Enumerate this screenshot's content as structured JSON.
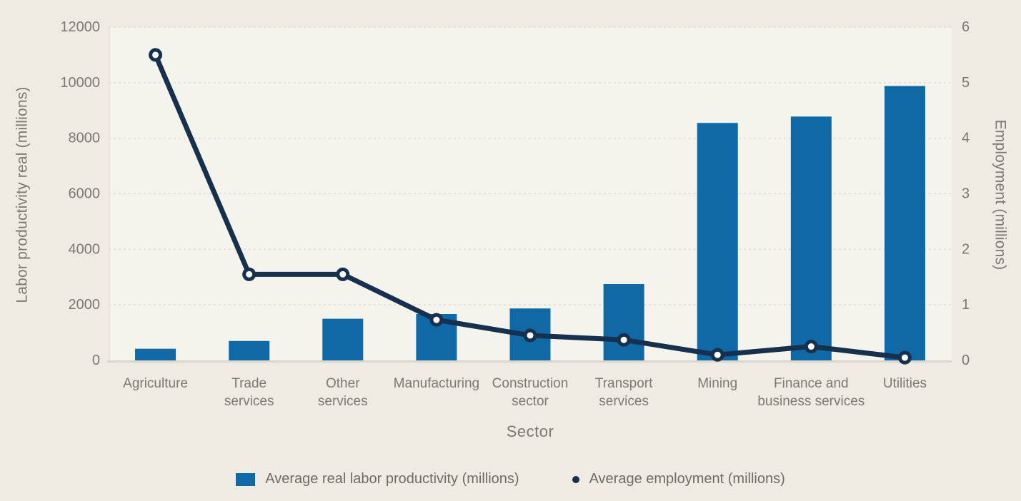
{
  "chart_data": {
    "type": "bar+line",
    "categories": [
      "Agriculture",
      "Trade services",
      "Other services",
      "Manufacturing",
      "Construction sector",
      "Transport services",
      "Mining",
      "Finance and business services",
      "Utilities"
    ],
    "category_label_lines": [
      [
        "Agriculture"
      ],
      [
        "Trade",
        "services"
      ],
      [
        "Other",
        "services"
      ],
      [
        "Manufacturing"
      ],
      [
        "Construction",
        "sector"
      ],
      [
        "Transport",
        "services"
      ],
      [
        "Mining"
      ],
      [
        "Finance and",
        "business services"
      ],
      [
        "Utilities"
      ]
    ],
    "series": [
      {
        "name": "Average real labor productivity (millions)",
        "type": "bar",
        "axis": "left",
        "color": "#0f69a7",
        "values": [
          420,
          700,
          1500,
          1670,
          1870,
          2750,
          8550,
          8780,
          9880
        ]
      },
      {
        "name": "Average employment (millions)",
        "type": "line",
        "axis": "right",
        "color": "#16304e",
        "marker": "open-circle",
        "marker_fill": "#ffffff",
        "values": [
          5.5,
          1.55,
          1.55,
          0.73,
          0.45,
          0.37,
          0.1,
          0.25,
          0.05
        ]
      }
    ],
    "title": "",
    "xlabel": "Sector",
    "ylabel_left": "Labor productivity real (millions)",
    "ylabel_right": "Employment (millions)",
    "ylim_left": [
      0,
      12000
    ],
    "ylim_right": [
      0,
      6
    ],
    "yticks_left": [
      0,
      2000,
      4000,
      6000,
      8000,
      10000,
      12000
    ],
    "yticks_right": [
      0,
      1,
      2,
      3,
      4,
      5,
      6
    ],
    "grid": "horizontal-dashed",
    "legend_position": "bottom"
  },
  "axes": {
    "left_title": "Labor productivity real (millions)",
    "right_title": "Employment (millions)",
    "x_title": "Sector"
  },
  "legend": {
    "items": [
      {
        "label": "Average real labor productivity (millions)",
        "marker": "blue-square"
      },
      {
        "label": "Average employment (millions)",
        "marker": "open-circle"
      }
    ]
  },
  "colors": {
    "bar": "#0f69a7",
    "line": "#16304e",
    "marker_fill": "#ffffff",
    "background": "#efebe2",
    "plot_background": "#f4f3ec",
    "gridline": "#ddd9cf",
    "axis_line": "#d9d6d0",
    "text": "#7c7973"
  }
}
